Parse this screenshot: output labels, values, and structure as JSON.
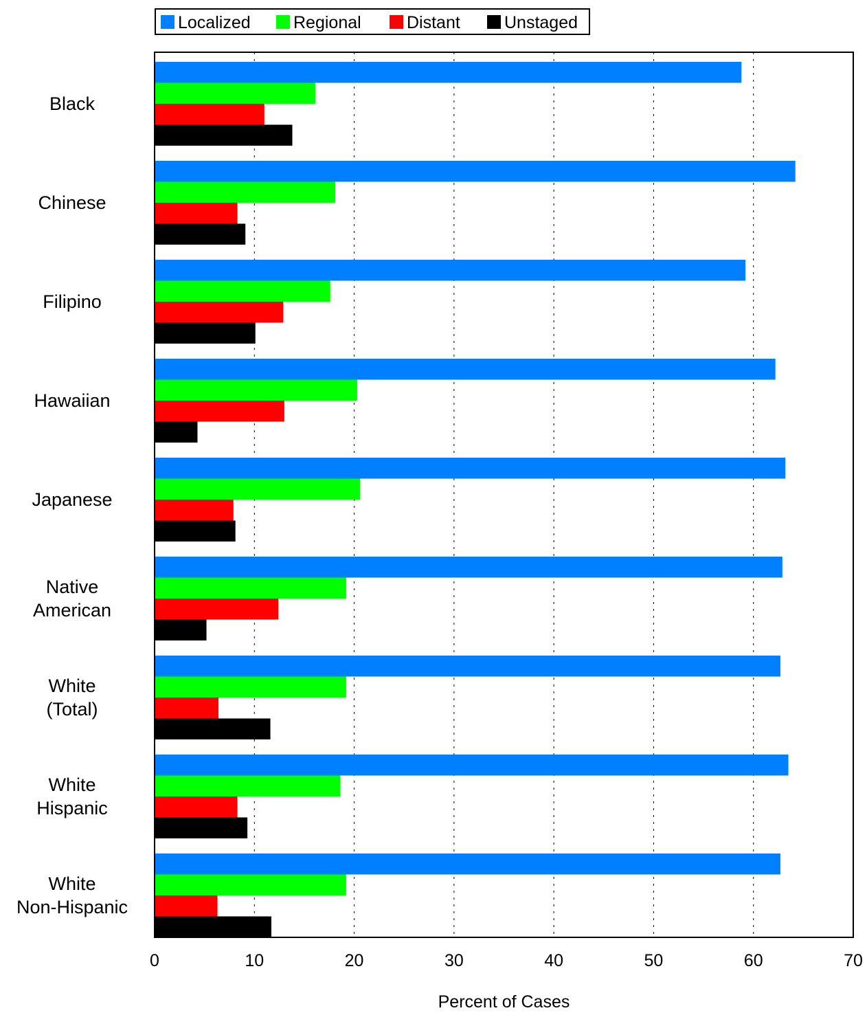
{
  "chart_data": {
    "type": "bar",
    "orientation": "horizontal",
    "title": "",
    "xlabel": "Percent of Cases",
    "ylabel": "",
    "xlim": [
      0,
      70
    ],
    "xticks": [
      0,
      10,
      20,
      30,
      40,
      50,
      60,
      70
    ],
    "grid": "vertical dotted",
    "legend_position": "top-left",
    "categories": [
      [
        "Black"
      ],
      [
        "Chinese"
      ],
      [
        "Filipino"
      ],
      [
        "Hawaiian"
      ],
      [
        "Japanese"
      ],
      [
        "Native",
        "American"
      ],
      [
        "White",
        "(Total)"
      ],
      [
        "White",
        "Hispanic"
      ],
      [
        "White",
        "Non-Hispanic"
      ]
    ],
    "series": [
      {
        "name": "Localized",
        "color": "#0080ff",
        "values": [
          58.8,
          64.2,
          59.2,
          62.2,
          63.2,
          62.9,
          62.7,
          63.5,
          62.7
        ]
      },
      {
        "name": "Regional",
        "color": "#00ff00",
        "values": [
          16.1,
          18.1,
          17.6,
          20.3,
          20.6,
          19.2,
          19.2,
          18.6,
          19.2
        ]
      },
      {
        "name": "Distant",
        "color": "#ff0000",
        "values": [
          11.0,
          8.3,
          12.9,
          13.0,
          7.9,
          12.4,
          6.4,
          8.3,
          6.3
        ]
      },
      {
        "name": "Unstaged",
        "color": "#000000",
        "values": [
          13.8,
          9.1,
          10.1,
          4.3,
          8.1,
          5.2,
          11.6,
          9.3,
          11.7
        ]
      }
    ]
  }
}
